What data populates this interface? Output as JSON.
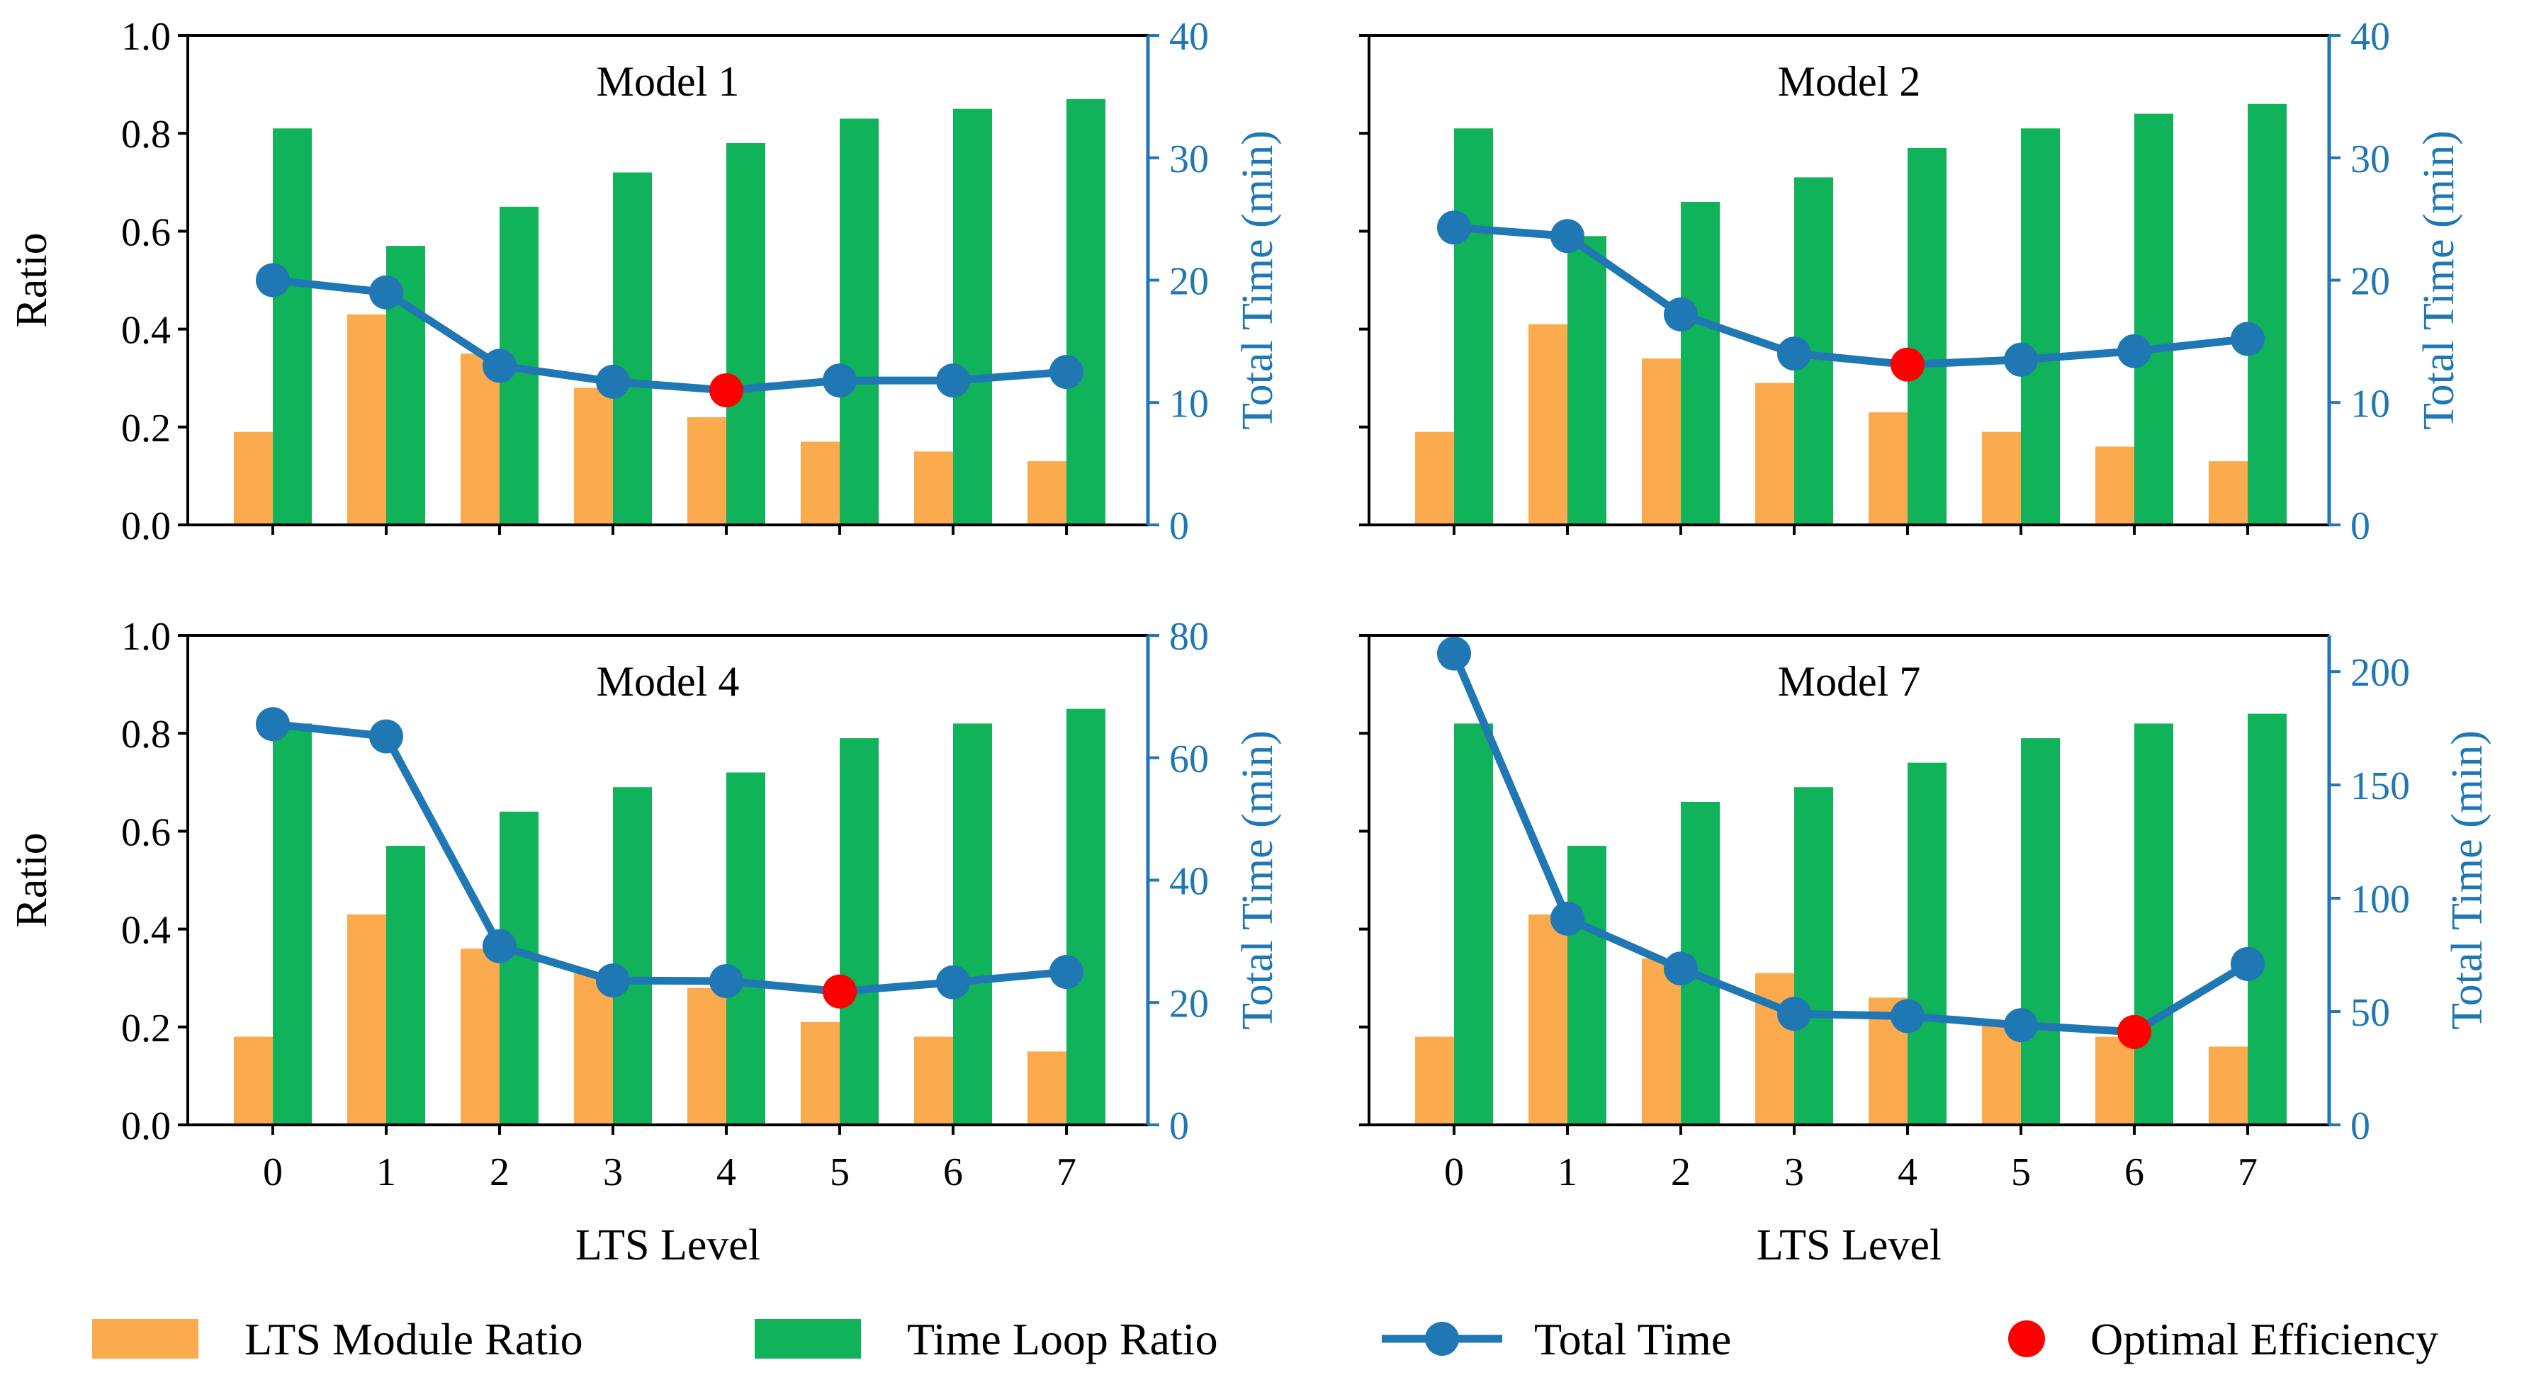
{
  "colors": {
    "lts_bar": "#fbab4e",
    "loop_bar": "#11b35a",
    "total_line": "#1f77b4",
    "optimal": "#ff0000",
    "right_axis": "#1f77b4"
  },
  "chart_data": [
    {
      "type": "bar",
      "title": "Model 1",
      "xlabel": "",
      "ylabel": "Ratio",
      "y2label": "Total Time (min)",
      "categories": [
        "0",
        "1",
        "2",
        "3",
        "4",
        "5",
        "6",
        "7"
      ],
      "ylim": [
        0,
        1.0
      ],
      "yticks": [
        "0.0",
        "0.2",
        "0.4",
        "0.6",
        "0.8",
        "1.0"
      ],
      "y2lim": [
        0,
        40
      ],
      "y2ticks": [
        "0",
        "10",
        "20",
        "30",
        "40"
      ],
      "series": [
        {
          "name": "LTS Module Ratio",
          "kind": "bar",
          "values": [
            0.19,
            0.43,
            0.35,
            0.28,
            0.22,
            0.17,
            0.15,
            0.13
          ]
        },
        {
          "name": "Time Loop Ratio",
          "kind": "bar",
          "values": [
            0.81,
            0.57,
            0.65,
            0.72,
            0.78,
            0.83,
            0.85,
            0.87
          ]
        },
        {
          "name": "Total Time",
          "kind": "line",
          "axis": "right",
          "values": [
            20.0,
            19.0,
            13.0,
            11.7,
            11.0,
            11.8,
            11.8,
            12.5
          ]
        }
      ],
      "optimal_index": 4
    },
    {
      "type": "bar",
      "title": "Model 2",
      "xlabel": "",
      "ylabel": "",
      "y2label": "Total Time (min)",
      "categories": [
        "0",
        "1",
        "2",
        "3",
        "4",
        "5",
        "6",
        "7"
      ],
      "ylim": [
        0,
        1.0
      ],
      "y2lim": [
        0,
        40
      ],
      "y2ticks": [
        "0",
        "10",
        "20",
        "30",
        "40"
      ],
      "series": [
        {
          "name": "LTS Module Ratio",
          "kind": "bar",
          "values": [
            0.19,
            0.41,
            0.34,
            0.29,
            0.23,
            0.19,
            0.16,
            0.13
          ]
        },
        {
          "name": "Time Loop Ratio",
          "kind": "bar",
          "values": [
            0.81,
            0.59,
            0.66,
            0.71,
            0.77,
            0.81,
            0.84,
            0.86
          ]
        },
        {
          "name": "Total Time",
          "kind": "line",
          "axis": "right",
          "values": [
            24.3,
            23.6,
            17.2,
            14.0,
            13.1,
            13.5,
            14.2,
            15.2
          ]
        }
      ],
      "optimal_index": 4
    },
    {
      "type": "bar",
      "title": "Model 4",
      "xlabel": "LTS Level",
      "ylabel": "Ratio",
      "y2label": "Total Time (min)",
      "categories": [
        "0",
        "1",
        "2",
        "3",
        "4",
        "5",
        "6",
        "7"
      ],
      "ylim": [
        0,
        1.0
      ],
      "yticks": [
        "0.0",
        "0.2",
        "0.4",
        "0.6",
        "0.8",
        "1.0"
      ],
      "y2lim": [
        0,
        80
      ],
      "y2ticks": [
        "0",
        "20",
        "40",
        "60",
        "80"
      ],
      "series": [
        {
          "name": "LTS Module Ratio",
          "kind": "bar",
          "values": [
            0.18,
            0.43,
            0.36,
            0.31,
            0.28,
            0.21,
            0.18,
            0.15
          ]
        },
        {
          "name": "Time Loop Ratio",
          "kind": "bar",
          "values": [
            0.82,
            0.57,
            0.64,
            0.69,
            0.72,
            0.79,
            0.82,
            0.85
          ]
        },
        {
          "name": "Total Time",
          "kind": "line",
          "axis": "right",
          "values": [
            65.5,
            63.5,
            29.2,
            23.6,
            23.5,
            21.8,
            23.3,
            25.0
          ]
        }
      ],
      "optimal_index": 5
    },
    {
      "type": "bar",
      "title": "Model 7",
      "xlabel": "LTS Level",
      "ylabel": "",
      "y2label": "Total Time (min)",
      "categories": [
        "0",
        "1",
        "2",
        "3",
        "4",
        "5",
        "6",
        "7"
      ],
      "ylim": [
        0,
        1.0
      ],
      "y2lim": [
        0,
        216
      ],
      "y2ticks": [
        "0",
        "50",
        "100",
        "150",
        "200"
      ],
      "series": [
        {
          "name": "LTS Module Ratio",
          "kind": "bar",
          "values": [
            0.18,
            0.43,
            0.34,
            0.31,
            0.26,
            0.21,
            0.18,
            0.16
          ]
        },
        {
          "name": "Time Loop Ratio",
          "kind": "bar",
          "values": [
            0.82,
            0.57,
            0.66,
            0.69,
            0.74,
            0.79,
            0.82,
            0.84
          ]
        },
        {
          "name": "Total Time",
          "kind": "line",
          "axis": "right",
          "values": [
            208,
            91,
            69,
            49,
            48,
            44,
            41,
            71
          ]
        }
      ],
      "optimal_index": 6
    }
  ],
  "legend": [
    {
      "label": "LTS Module Ratio",
      "kind": "bar",
      "color": "#fbab4e"
    },
    {
      "label": "Time Loop Ratio",
      "kind": "bar",
      "color": "#11b35a"
    },
    {
      "label": "Total Time",
      "kind": "line",
      "color": "#1f77b4"
    },
    {
      "label": "Optimal Efficiency",
      "kind": "dot",
      "color": "#ff0000"
    }
  ]
}
